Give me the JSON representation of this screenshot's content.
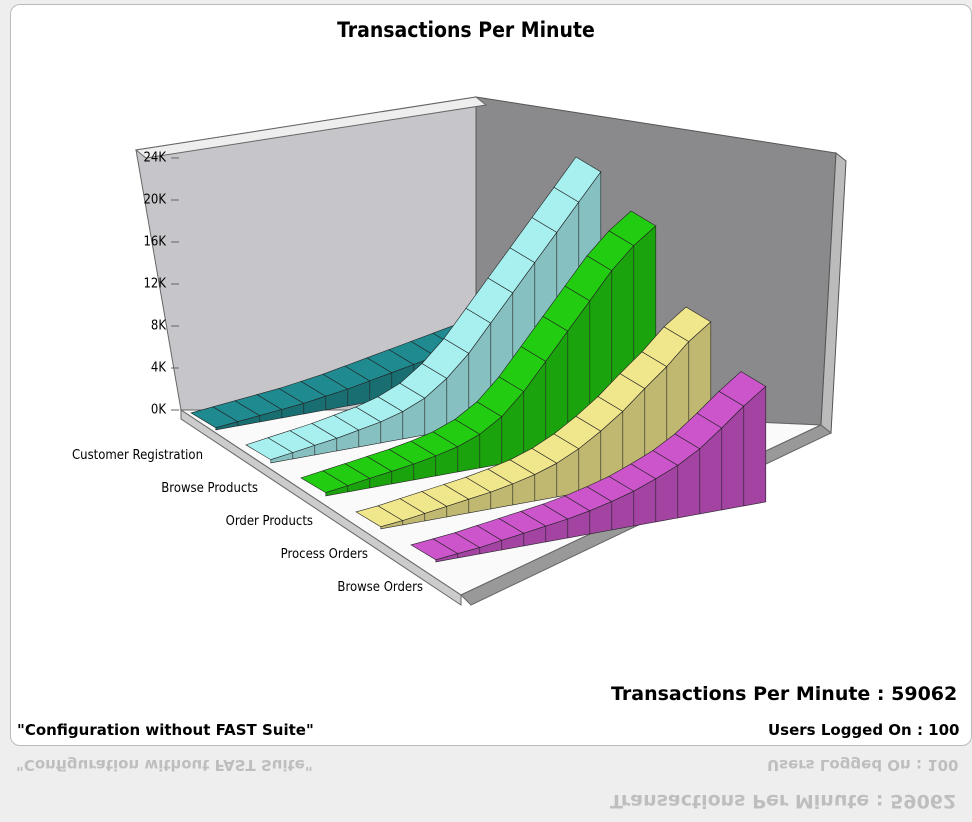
{
  "chart_data": {
    "type": "ribbon",
    "title": "Transactions Per Minute",
    "ylim": [
      0,
      24000
    ],
    "yticks": [
      {
        "value": 0,
        "label": "0K"
      },
      {
        "value": 4000,
        "label": "4K"
      },
      {
        "value": 8000,
        "label": "8K"
      },
      {
        "value": 12000,
        "label": "12K"
      },
      {
        "value": 16000,
        "label": "16K"
      },
      {
        "value": 20000,
        "label": "20K"
      },
      {
        "value": 24000,
        "label": "24K"
      }
    ],
    "series": [
      {
        "name": "Customer Registration",
        "color": "#1f8a8f",
        "values": [
          200,
          400,
          600,
          800,
          1000,
          1300,
          1600,
          2000,
          2400,
          2800,
          3200,
          3600,
          4000,
          4400,
          4800,
          5000
        ]
      },
      {
        "name": "Browse Products",
        "color": "#a8f0f0",
        "values": [
          300,
          600,
          900,
          1200,
          1600,
          2000,
          2600,
          3500,
          5000,
          7000,
          9500,
          12000,
          14500,
          17000,
          19500,
          22000
        ]
      },
      {
        "name": "Order Products",
        "color": "#22cc11",
        "values": [
          300,
          600,
          900,
          1200,
          1500,
          1900,
          2400,
          3200,
          4500,
          6500,
          9000,
          11500,
          14000,
          16500,
          18500,
          20000
        ]
      },
      {
        "name": "Process Orders",
        "color": "#f0e68c",
        "values": [
          200,
          400,
          700,
          1000,
          1300,
          1600,
          2000,
          2500,
          3200,
          4200,
          5500,
          7000,
          8800,
          10500,
          12500,
          14000
        ]
      },
      {
        "name": "Browse Orders",
        "color": "#cc55cc",
        "values": [
          200,
          400,
          600,
          900,
          1200,
          1500,
          1800,
          2200,
          2700,
          3300,
          4100,
          5000,
          6200,
          7800,
          9500,
          11000
        ]
      }
    ],
    "summary": "Transactions Per Minute : 59062",
    "configuration": "\"Configuration without FAST Suite\"",
    "users": "Users Logged On : 100"
  }
}
